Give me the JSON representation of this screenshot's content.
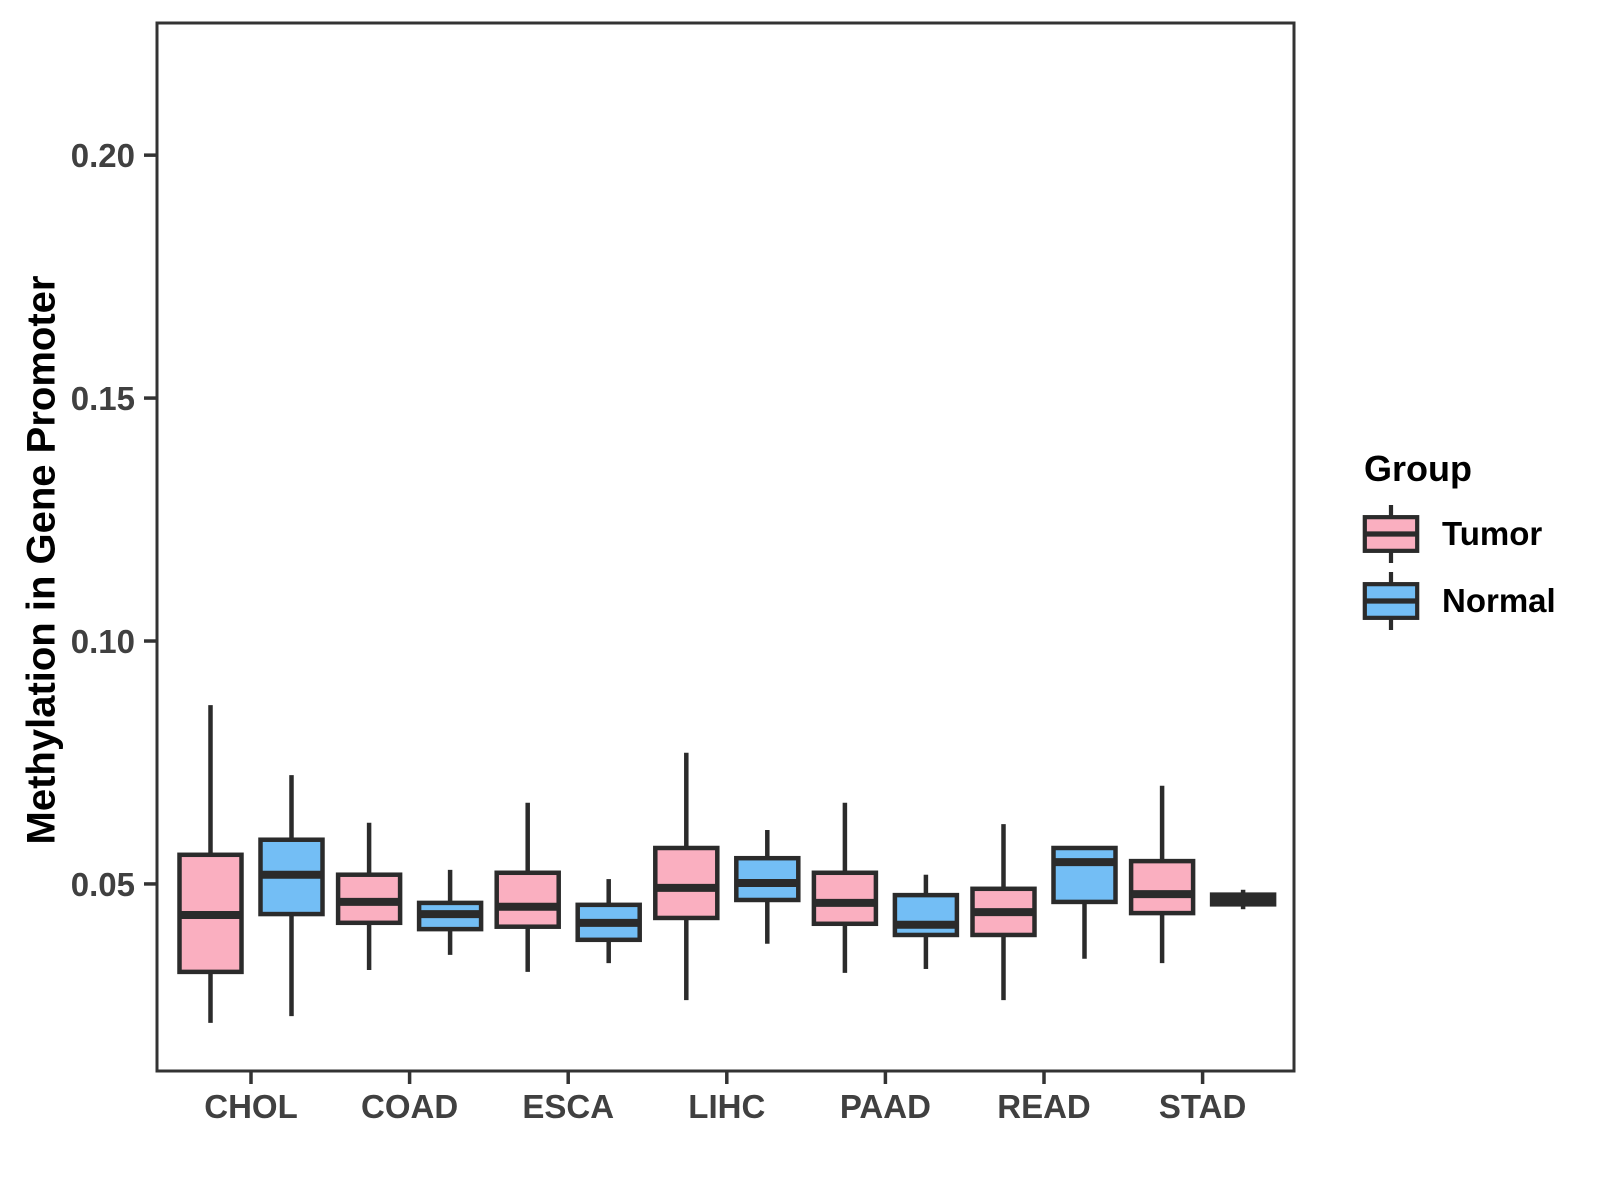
{
  "chart_data": {
    "type": "boxplot",
    "title": "",
    "xlabel": "",
    "ylabel": "Methylation in Gene Promoter",
    "categories": [
      "CHOL",
      "COAD",
      "ESCA",
      "LIHC",
      "PAAD",
      "READ",
      "STAD"
    ],
    "y_ticks": [
      "0.05",
      "0.10",
      "0.15",
      "0.20"
    ],
    "y_tick_values": [
      0.05,
      0.1,
      0.15,
      0.2
    ],
    "ylim": [
      0.0115,
      0.2272
    ],
    "grid": false,
    "legend": {
      "title": "Group",
      "position": "right",
      "entries": [
        "Tumor",
        "Normal"
      ]
    },
    "groups": [
      {
        "name": "Tumor",
        "fill": "#FAAFC0"
      },
      {
        "name": "Normal",
        "fill": "#73BEF5"
      }
    ],
    "colors": {
      "box_stroke": "#2B2B2B",
      "axis": "#333333",
      "axis_text": "#404040",
      "title_text": "#000000",
      "background": "#FFFFFF"
    },
    "series": [
      {
        "name": "Tumor",
        "boxes": [
          {
            "category": "CHOL",
            "whisker_low": 0.0214,
            "q1": 0.0319,
            "median": 0.0436,
            "q3": 0.056,
            "whisker_high": 0.0868
          },
          {
            "category": "COAD",
            "whisker_low": 0.0323,
            "q1": 0.042,
            "median": 0.0463,
            "q3": 0.0519,
            "whisker_high": 0.0626
          },
          {
            "category": "ESCA",
            "whisker_low": 0.0319,
            "q1": 0.0412,
            "median": 0.0453,
            "q3": 0.0523,
            "whisker_high": 0.0667
          },
          {
            "category": "LIHC",
            "whisker_low": 0.0261,
            "q1": 0.043,
            "median": 0.0492,
            "q3": 0.0574,
            "whisker_high": 0.077
          },
          {
            "category": "PAAD",
            "whisker_low": 0.0317,
            "q1": 0.0418,
            "median": 0.0461,
            "q3": 0.0523,
            "whisker_high": 0.0667
          },
          {
            "category": "READ",
            "whisker_low": 0.0261,
            "q1": 0.0395,
            "median": 0.0442,
            "q3": 0.049,
            "whisker_high": 0.0623
          },
          {
            "category": "STAD",
            "whisker_low": 0.0337,
            "q1": 0.044,
            "median": 0.0479,
            "q3": 0.0547,
            "whisker_high": 0.0702
          }
        ]
      },
      {
        "name": "Normal",
        "boxes": [
          {
            "category": "CHOL",
            "whisker_low": 0.0228,
            "q1": 0.0438,
            "median": 0.0519,
            "q3": 0.0591,
            "whisker_high": 0.0724
          },
          {
            "category": "COAD",
            "whisker_low": 0.0354,
            "q1": 0.0407,
            "median": 0.0438,
            "q3": 0.0461,
            "whisker_high": 0.0529
          },
          {
            "category": "ESCA",
            "whisker_low": 0.0337,
            "q1": 0.0385,
            "median": 0.042,
            "q3": 0.0457,
            "whisker_high": 0.051
          },
          {
            "category": "LIHC",
            "whisker_low": 0.0377,
            "q1": 0.0467,
            "median": 0.0502,
            "q3": 0.0553,
            "whisker_high": 0.0611
          },
          {
            "category": "PAAD",
            "whisker_low": 0.0325,
            "q1": 0.0395,
            "median": 0.0416,
            "q3": 0.0477,
            "whisker_high": 0.0519
          },
          {
            "category": "READ",
            "whisker_low": 0.0346,
            "q1": 0.0463,
            "median": 0.0545,
            "q3": 0.0574,
            "whisker_high": 0.0574
          },
          {
            "category": "STAD",
            "whisker_low": 0.0448,
            "q1": 0.0458,
            "median": 0.0468,
            "q3": 0.0478,
            "whisker_high": 0.0488
          }
        ]
      }
    ]
  }
}
